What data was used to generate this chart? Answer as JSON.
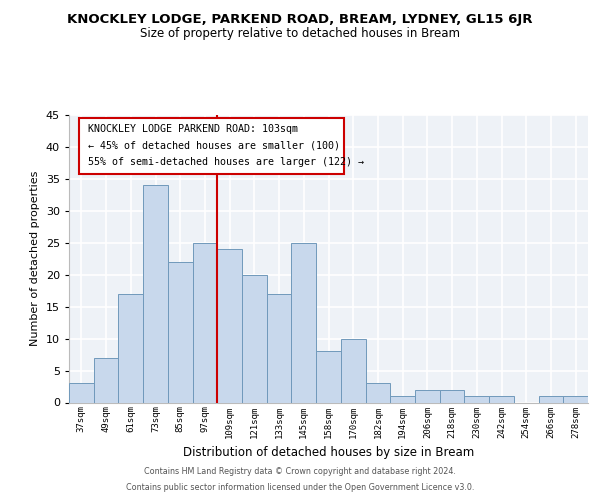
{
  "title": "KNOCKLEY LODGE, PARKEND ROAD, BREAM, LYDNEY, GL15 6JR",
  "subtitle": "Size of property relative to detached houses in Bream",
  "xlabel": "Distribution of detached houses by size in Bream",
  "ylabel": "Number of detached properties",
  "bar_labels": [
    "37sqm",
    "49sqm",
    "61sqm",
    "73sqm",
    "85sqm",
    "97sqm",
    "109sqm",
    "121sqm",
    "133sqm",
    "145sqm",
    "158sqm",
    "170sqm",
    "182sqm",
    "194sqm",
    "206sqm",
    "218sqm",
    "230sqm",
    "242sqm",
    "254sqm",
    "266sqm",
    "278sqm"
  ],
  "bar_values": [
    3,
    7,
    17,
    34,
    22,
    25,
    24,
    20,
    17,
    25,
    8,
    10,
    3,
    1,
    2,
    2,
    1,
    1,
    0,
    1,
    1
  ],
  "bar_color": "#c8d8ec",
  "bar_edge_color": "#7099bb",
  "vline_x": 5.5,
  "vline_color": "#cc0000",
  "annotation_title": "KNOCKLEY LODGE PARKEND ROAD: 103sqm",
  "annotation_line1": "← 45% of detached houses are smaller (100)",
  "annotation_line2": "55% of semi-detached houses are larger (122) →",
  "annotation_box_facecolor": "#ffffff",
  "annotation_border_color": "#cc0000",
  "ylim": [
    0,
    45
  ],
  "yticks": [
    0,
    5,
    10,
    15,
    20,
    25,
    30,
    35,
    40,
    45
  ],
  "footer_line1": "Contains HM Land Registry data © Crown copyright and database right 2024.",
  "footer_line2": "Contains public sector information licensed under the Open Government Licence v3.0.",
  "bg_color": "#eef2f7",
  "fig_bg": "#ffffff"
}
